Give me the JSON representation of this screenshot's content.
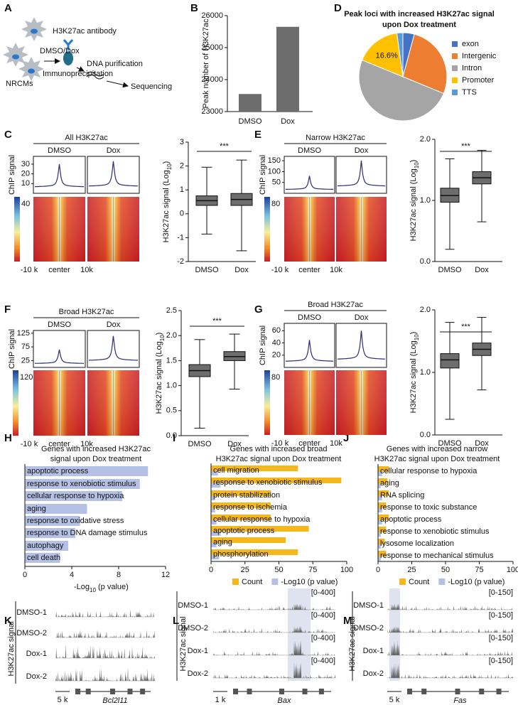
{
  "figure": {
    "panel_labels": [
      "A",
      "B",
      "C",
      "D",
      "E",
      "F",
      "G",
      "H",
      "I",
      "J",
      "K",
      "L",
      "M"
    ],
    "schematic": {
      "antibody": "H3K27ac antibody",
      "treatment": "DMSO/Dox",
      "cells": "NRCMs",
      "step1": "Immunoprecipitation",
      "step2": "DNA purification",
      "step3": "Sequencing"
    },
    "heatmaps": [
      {
        "title": "All H3K27ac",
        "conditions": [
          "DMSO",
          "Dox"
        ],
        "ylabel": "ChIP signal",
        "ylim": [
          0,
          38
        ],
        "yticks": [
          10,
          20,
          30
        ],
        "peak_values": [
          30,
          33
        ],
        "colorbar_label": "40",
        "xlabels": [
          "-10 k",
          "center",
          "10k"
        ]
      },
      {
        "title": "Narrow H3K27ac",
        "conditions": [
          "DMSO",
          "Dox"
        ],
        "ylabel": "ChIP signal",
        "ylim": [
          0,
          170
        ],
        "yticks": [
          50,
          100,
          150
        ],
        "peak_values": [
          80,
          150
        ],
        "colorbar_label": "80",
        "xlabels": [
          "-10 k",
          "center",
          "10k"
        ]
      },
      {
        "title": "Broad H3K27ac",
        "conditions": [
          "DMSO",
          "Dox"
        ],
        "ylabel": "ChIP signal",
        "ylim": [
          0,
          135
        ],
        "yticks": [
          25,
          75,
          125
        ],
        "peak_values": [
          65,
          115
        ],
        "colorbar_label": "120",
        "xlabels": [
          "-10 k",
          "center",
          "10k"
        ]
      },
      {
        "title": "Broad H3K27ac",
        "conditions": [
          "DMSO",
          "Dox"
        ],
        "ylabel": "ChIP signal",
        "ylim": [
          0,
          72
        ],
        "yticks": [
          20,
          40,
          60
        ],
        "peak_values": [
          45,
          60
        ],
        "colorbar_label": "80",
        "xlabels": [
          "-10 k",
          "center",
          "10k"
        ]
      }
    ],
    "tracks": [
      {
        "ylabel": "H3K27ac signal",
        "samples": [
          "DMSO-1",
          "DMSO-2",
          "Dox-1",
          "Dox-2"
        ],
        "scale": "5 k",
        "gene": "Bcl2l11"
      },
      {
        "ylabel": "H3K27ac signal",
        "samples": [
          "DMSO-1",
          "DMSO-2",
          "Dox-1",
          "Dox-2"
        ],
        "ranges": [
          "[0-400]",
          "[0-400]",
          "[0-400]",
          "[0-400]"
        ],
        "scale": "1 k",
        "gene": "Bax"
      },
      {
        "ylabel": "H3K27ac signal",
        "samples": [
          "DMSO-1",
          "DMSO-2",
          "Dox-1",
          "Dox-2"
        ],
        "ranges": [
          "[0-150]",
          "[0-150]",
          "[0-150]",
          "[0-150]"
        ],
        "scale": "5 k",
        "gene": "Fas"
      }
    ]
  },
  "chart_data": [
    {
      "type": "bar",
      "ylabel": "Peak  number of H3K27ac",
      "categories": [
        "DMSO",
        "Dox"
      ],
      "values": [
        23550,
        25650
      ],
      "color": "#6d6d6d",
      "ylim": [
        23000,
        26000
      ],
      "yticks": [
        23000,
        24000,
        25000,
        26000
      ]
    },
    {
      "type": "pie",
      "title": [
        "Peak loci with increased H3K27ac signal",
        "upon Dox treatment"
      ],
      "categories": [
        "exon",
        "Intergenic",
        "Intron",
        "Promoter",
        "TTS"
      ],
      "values": [
        4.2,
        27,
        50,
        16.6,
        2.2
      ],
      "value_labels": [
        null,
        null,
        null,
        "16.6%",
        null
      ],
      "colors": [
        "#4472c4",
        "#ed7d31",
        "#a5a5a5",
        "#ffc000",
        "#5b9bd5"
      ]
    },
    {
      "type": "box",
      "ylabel": [
        "H3K27ac signal (Log",
        "10",
        ")"
      ],
      "categories": [
        "DMSO",
        "Dox"
      ],
      "boxes": [
        {
          "min": -0.85,
          "q1": 0.35,
          "median": 0.55,
          "q3": 0.75,
          "max": 1.95
        },
        {
          "min": -1.55,
          "q1": 0.35,
          "median": 0.6,
          "q3": 0.85,
          "max": 2.25
        }
      ],
      "ylim": [
        -2,
        3
      ],
      "yticks": [
        -2,
        -1,
        0,
        1,
        2,
        3
      ],
      "annotation": "***",
      "color": "#6d6d6d"
    },
    {
      "type": "box",
      "ylabel": [
        "H3K27ac signal (Log",
        "10",
        ")"
      ],
      "categories": [
        "DMSO",
        "Dox"
      ],
      "boxes": [
        {
          "min": 0.2,
          "q1": 0.97,
          "median": 1.08,
          "q3": 1.2,
          "max": 1.68
        },
        {
          "min": 0.65,
          "q1": 1.27,
          "median": 1.37,
          "q3": 1.47,
          "max": 1.82
        }
      ],
      "ylim": [
        0,
        2
      ],
      "yticks": [
        {
          "value": 0,
          "label": "0.0"
        },
        {
          "value": 1,
          "label": "1.0"
        },
        {
          "value": 2,
          "label": "2.0"
        }
      ],
      "annotation": "***",
      "color": "#6d6d6d"
    },
    {
      "type": "box",
      "ylabel": [
        "H3K27ac signal (Log",
        "10",
        ")"
      ],
      "categories": [
        "DMSO",
        "Dox"
      ],
      "boxes": [
        {
          "min": 0.15,
          "q1": 1.18,
          "median": 1.3,
          "q3": 1.42,
          "max": 1.92
        },
        {
          "min": 0.93,
          "q1": 1.5,
          "median": 1.58,
          "q3": 1.68,
          "max": 2.03
        }
      ],
      "ylim": [
        0,
        2.5
      ],
      "yticks": [
        {
          "value": 0,
          "label": "0.0"
        },
        0.5,
        {
          "value": 1,
          "label": "1.0"
        },
        1.5,
        {
          "value": 2,
          "label": "2.0"
        },
        2.5
      ],
      "annotation": "***",
      "color": "#6d6d6d"
    },
    {
      "type": "box",
      "ylabel": [
        "H3K27ac signal (Log",
        "10",
        ")"
      ],
      "categories": [
        "DMSO",
        "Dox"
      ],
      "boxes": [
        {
          "min": 0.25,
          "q1": 1.07,
          "median": 1.2,
          "q3": 1.3,
          "max": 1.8
        },
        {
          "min": 0.72,
          "q1": 1.27,
          "median": 1.37,
          "q3": 1.47,
          "max": 1.88
        }
      ],
      "ylim": [
        0,
        2
      ],
      "yticks": [
        {
          "value": 0,
          "label": "0.0"
        },
        {
          "value": 1,
          "label": "1.0"
        },
        {
          "value": 2,
          "label": "2.0"
        }
      ],
      "annotation": "***",
      "color": "#6d6d6d"
    },
    {
      "type": "hbar",
      "title": [
        "Genes with increased H3K27ac",
        "signal upon Dox treatment"
      ],
      "categories": [
        "apoptotic process",
        "response to xenobiotic stimulus",
        "cellular response to hypoxia",
        "aging",
        "response to oxidative stress",
        "response to DNA damage stimulus",
        "autophagy",
        "cell death"
      ],
      "series": [
        {
          "name": "-Log10 (p value)",
          "color": "#b4c0e4",
          "values": [
            10.5,
            9.8,
            8.3,
            5.3,
            4.7,
            4.3,
            3.7,
            3.0
          ]
        }
      ],
      "xlim": [
        0,
        12
      ],
      "xticks": [
        0,
        4,
        8,
        12
      ],
      "xlabel": [
        "-Log",
        "10",
        " (p value)"
      ]
    },
    {
      "type": "hbar",
      "title": [
        "Genes with increased broad",
        "H3K27ac signal upon Dox treatment"
      ],
      "categories": [
        "cell migration",
        "response to xenobiotic stimulus",
        "protein stabilization",
        "response to ischemia",
        "cellular response to hypoxia",
        "apoptotic process",
        "aging",
        "phosphorylation"
      ],
      "highlight_index": 5,
      "highlight_color": "#e8211d",
      "series": [
        {
          "name": "Count",
          "color": "#f4b81c",
          "values": [
            64,
            96,
            44,
            44,
            44,
            72,
            55,
            64
          ]
        },
        {
          "name": "-Log10 (p value)",
          "color": "#b4c0e4",
          "values": [
            5,
            7,
            3,
            3,
            4,
            7,
            4,
            6
          ]
        }
      ],
      "xlim": [
        0,
        100
      ],
      "xticks": [
        0,
        25,
        50,
        75,
        100
      ],
      "legend": "bottom"
    },
    {
      "type": "hbar",
      "title": [
        "Genes with increased narrow",
        "H3K27ac signal  upon Dox treatment"
      ],
      "categories": [
        "cellular response to hypoxia",
        "aging",
        "RNA splicing",
        "response to toxic substance",
        "apoptotic process",
        "response to xenobiotic stimulus",
        "lysosome localization",
        "response to mechanical stimulus"
      ],
      "highlight_index": 4,
      "highlight_color": "#e8211d",
      "series": [
        {
          "name": "Count",
          "color": "#f4b81c",
          "values": [
            8,
            7,
            8,
            6,
            8,
            6,
            5,
            6
          ]
        },
        {
          "name": "-Log10 (p value)",
          "color": "#b4c0e4",
          "values": [
            3,
            2,
            3,
            3,
            3,
            2,
            2,
            2
          ]
        }
      ],
      "xlim": [
        0,
        100
      ],
      "xticks": [
        0,
        25,
        50,
        75,
        100
      ],
      "legend": "bottom"
    }
  ]
}
